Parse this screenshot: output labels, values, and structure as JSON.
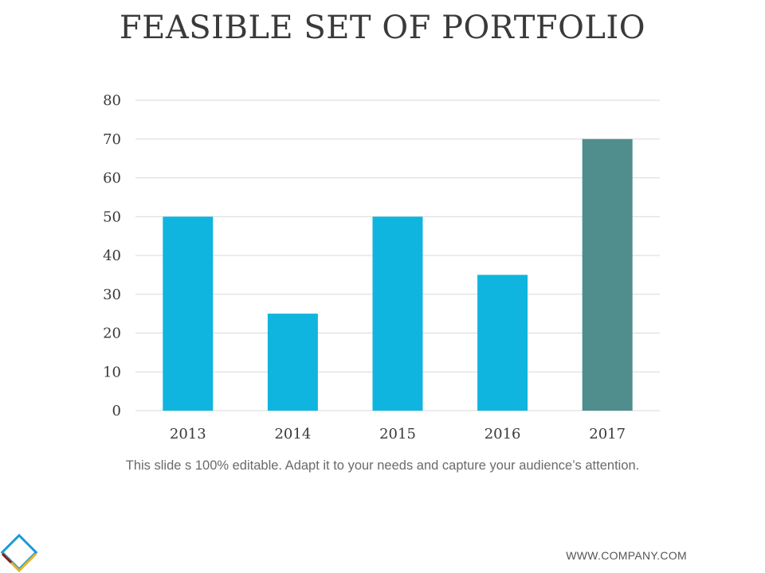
{
  "slide": {
    "title": "FEASIBLE SET OF PORTFOLIO",
    "caption": "This slide s 100% editable. Adapt it to your needs and capture your audience’s attention.",
    "footer_url": "WWW.COMPANY.COM"
  },
  "colors": {
    "bar_primary": "#0fb5de",
    "bar_highlight": "#4f8e8c",
    "gridline": "#d9d9d9",
    "text": "#3a3a3a",
    "logo_blue": "#1a9bd7",
    "logo_yellow": "#e5b32a",
    "logo_red": "#8b1a1a"
  },
  "chart_data": {
    "type": "bar",
    "title": "FEASIBLE SET OF PORTFOLIO",
    "categories": [
      "2013",
      "2014",
      "2015",
      "2016",
      "2017"
    ],
    "values": [
      50,
      25,
      50,
      35,
      70
    ],
    "highlight_index": 4,
    "xlabel": "",
    "ylabel": "",
    "ylim": [
      0,
      80
    ],
    "yticks": [
      0,
      10,
      20,
      30,
      40,
      50,
      60,
      70,
      80
    ],
    "grid": true,
    "legend": "none"
  }
}
